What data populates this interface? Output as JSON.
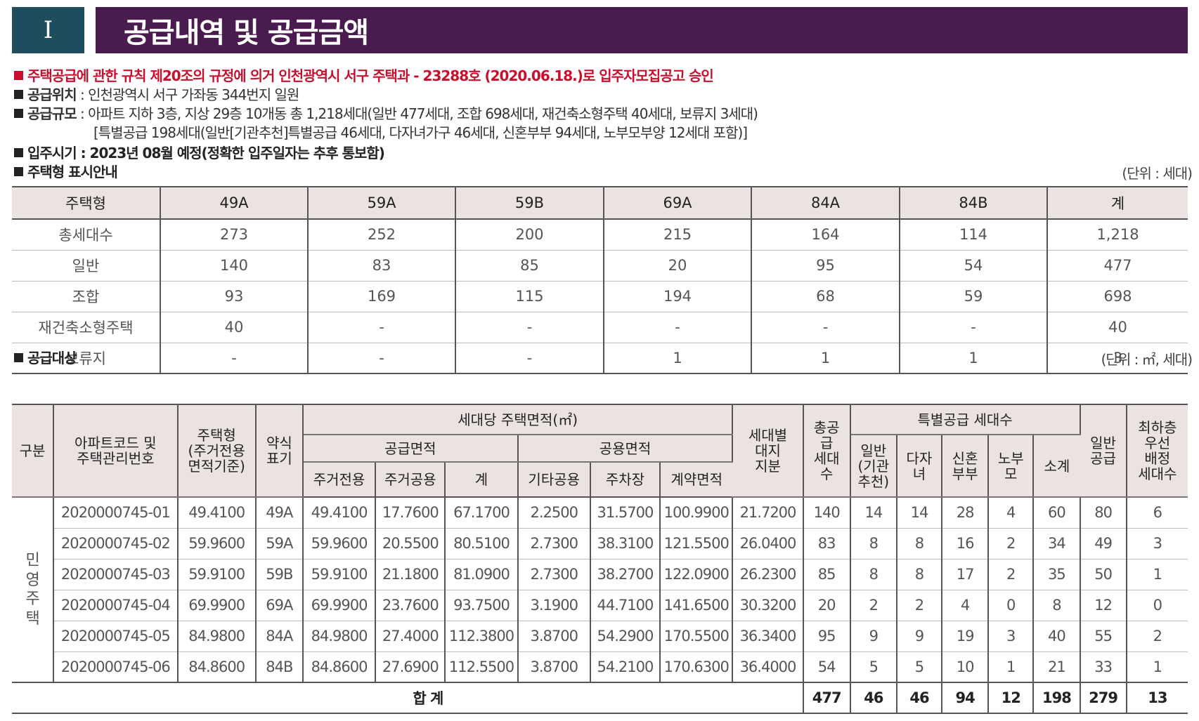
{
  "header": {
    "number": "I",
    "title": "공급내역 및 공급금액"
  },
  "notice": {
    "approval": "주택공급에 관한 규칙 제20조의 규정에 의거 인천광역시 서구 주택과 - 23288호 (2020.06.18.)로 입주자모집공고 승인",
    "location_label": "공급위치",
    "location_value": " : 인천광역시 서구 가좌동 344번지 일원",
    "scale_label": "공급규모",
    "scale_value": " : 아파트 지하 3층, 지상 29층 10개동 총 1,218세대(일반 477세대, 조합 698세대, 재건축소형주택 40세대, 보류지 3세대)",
    "scale_value2": "[특별공급 198세대(일반[기관추천]특별공급 46세대, 다자녀가구 46세대, 신혼부부 94세대, 노부모부양 12세대 포함)]",
    "move_in": "입주시기 : 2023년 08월 예정(정확한 입주일자는 추후 통보함)",
    "type_guide": "주택형 표시안내"
  },
  "table1": {
    "unit": "(단위 : 세대)",
    "headers": [
      "주택형",
      "49A",
      "59A",
      "59B",
      "69A",
      "84A",
      "84B",
      "계"
    ],
    "rows": [
      [
        "총세대수",
        "273",
        "252",
        "200",
        "215",
        "164",
        "114",
        "1,218"
      ],
      [
        "일반",
        "140",
        "83",
        "85",
        "20",
        "95",
        "54",
        "477"
      ],
      [
        "조합",
        "93",
        "169",
        "115",
        "194",
        "68",
        "59",
        "698"
      ],
      [
        "재건축소형주택",
        "40",
        "-",
        "-",
        "-",
        "-",
        "-",
        "40"
      ],
      [
        "보류지",
        "-",
        "-",
        "-",
        "1",
        "1",
        "1",
        "3"
      ]
    ]
  },
  "table2": {
    "section_label": "공급대상",
    "unit": "(단위 : ㎡, 세대)",
    "h": {
      "gubun": "구분",
      "code": "아파트코드 및\n주택관리번호",
      "type": "주택형\n(주거전용\n면적기준)",
      "abbr": "약식\n표기",
      "area": "세대당 주택면적(㎡)",
      "supply_area": "공급면적",
      "common_area": "공용면적",
      "excl": "주거전용",
      "resi_common": "주거공용",
      "subtotal": "계",
      "other_common": "기타공용",
      "parking": "주차장",
      "contract": "계약면적",
      "land": "세대별\n대지\n지분",
      "total_supply": "총공\n급\n세대\n수",
      "special": "특별공급 세대수",
      "sp_general": "일반\n(기관\n추천)",
      "sp_multi": "다자\n녀",
      "sp_newlywed": "신혼\n부부",
      "sp_parents": "노부\n모",
      "sp_sum": "소계",
      "general": "일반\n공급",
      "lowest": "최하층\n우선\n배정\n세대수"
    },
    "category": "민\n영\n주\n택",
    "rows": [
      [
        "2020000745-01",
        "49.4100",
        "49A",
        "49.4100",
        "17.7600",
        "67.1700",
        "2.2500",
        "31.5700",
        "100.9900",
        "21.7200",
        "140",
        "14",
        "14",
        "28",
        "4",
        "60",
        "80",
        "6"
      ],
      [
        "2020000745-02",
        "59.9600",
        "59A",
        "59.9600",
        "20.5500",
        "80.5100",
        "2.7300",
        "38.3100",
        "121.5500",
        "26.0400",
        "83",
        "8",
        "8",
        "16",
        "2",
        "34",
        "49",
        "3"
      ],
      [
        "2020000745-03",
        "59.9100",
        "59B",
        "59.9100",
        "21.1800",
        "81.0900",
        "2.7300",
        "38.2700",
        "122.0900",
        "26.2300",
        "85",
        "8",
        "8",
        "17",
        "2",
        "35",
        "50",
        "1"
      ],
      [
        "2020000745-04",
        "69.9900",
        "69A",
        "69.9900",
        "23.7600",
        "93.7500",
        "3.1900",
        "44.7100",
        "141.6500",
        "30.3200",
        "20",
        "2",
        "2",
        "4",
        "0",
        "8",
        "12",
        "0"
      ],
      [
        "2020000745-05",
        "84.9800",
        "84A",
        "84.9800",
        "27.4000",
        "112.3800",
        "3.8700",
        "54.2900",
        "170.5500",
        "36.3400",
        "95",
        "9",
        "9",
        "19",
        "3",
        "40",
        "55",
        "2"
      ],
      [
        "2020000745-06",
        "84.8600",
        "84B",
        "84.8600",
        "27.6900",
        "112.5500",
        "3.8700",
        "54.2100",
        "170.6300",
        "36.4000",
        "54",
        "5",
        "5",
        "10",
        "1",
        "21",
        "33",
        "1"
      ]
    ],
    "total": [
      "합 계",
      "477",
      "46",
      "46",
      "94",
      "12",
      "198",
      "279",
      "13"
    ]
  }
}
